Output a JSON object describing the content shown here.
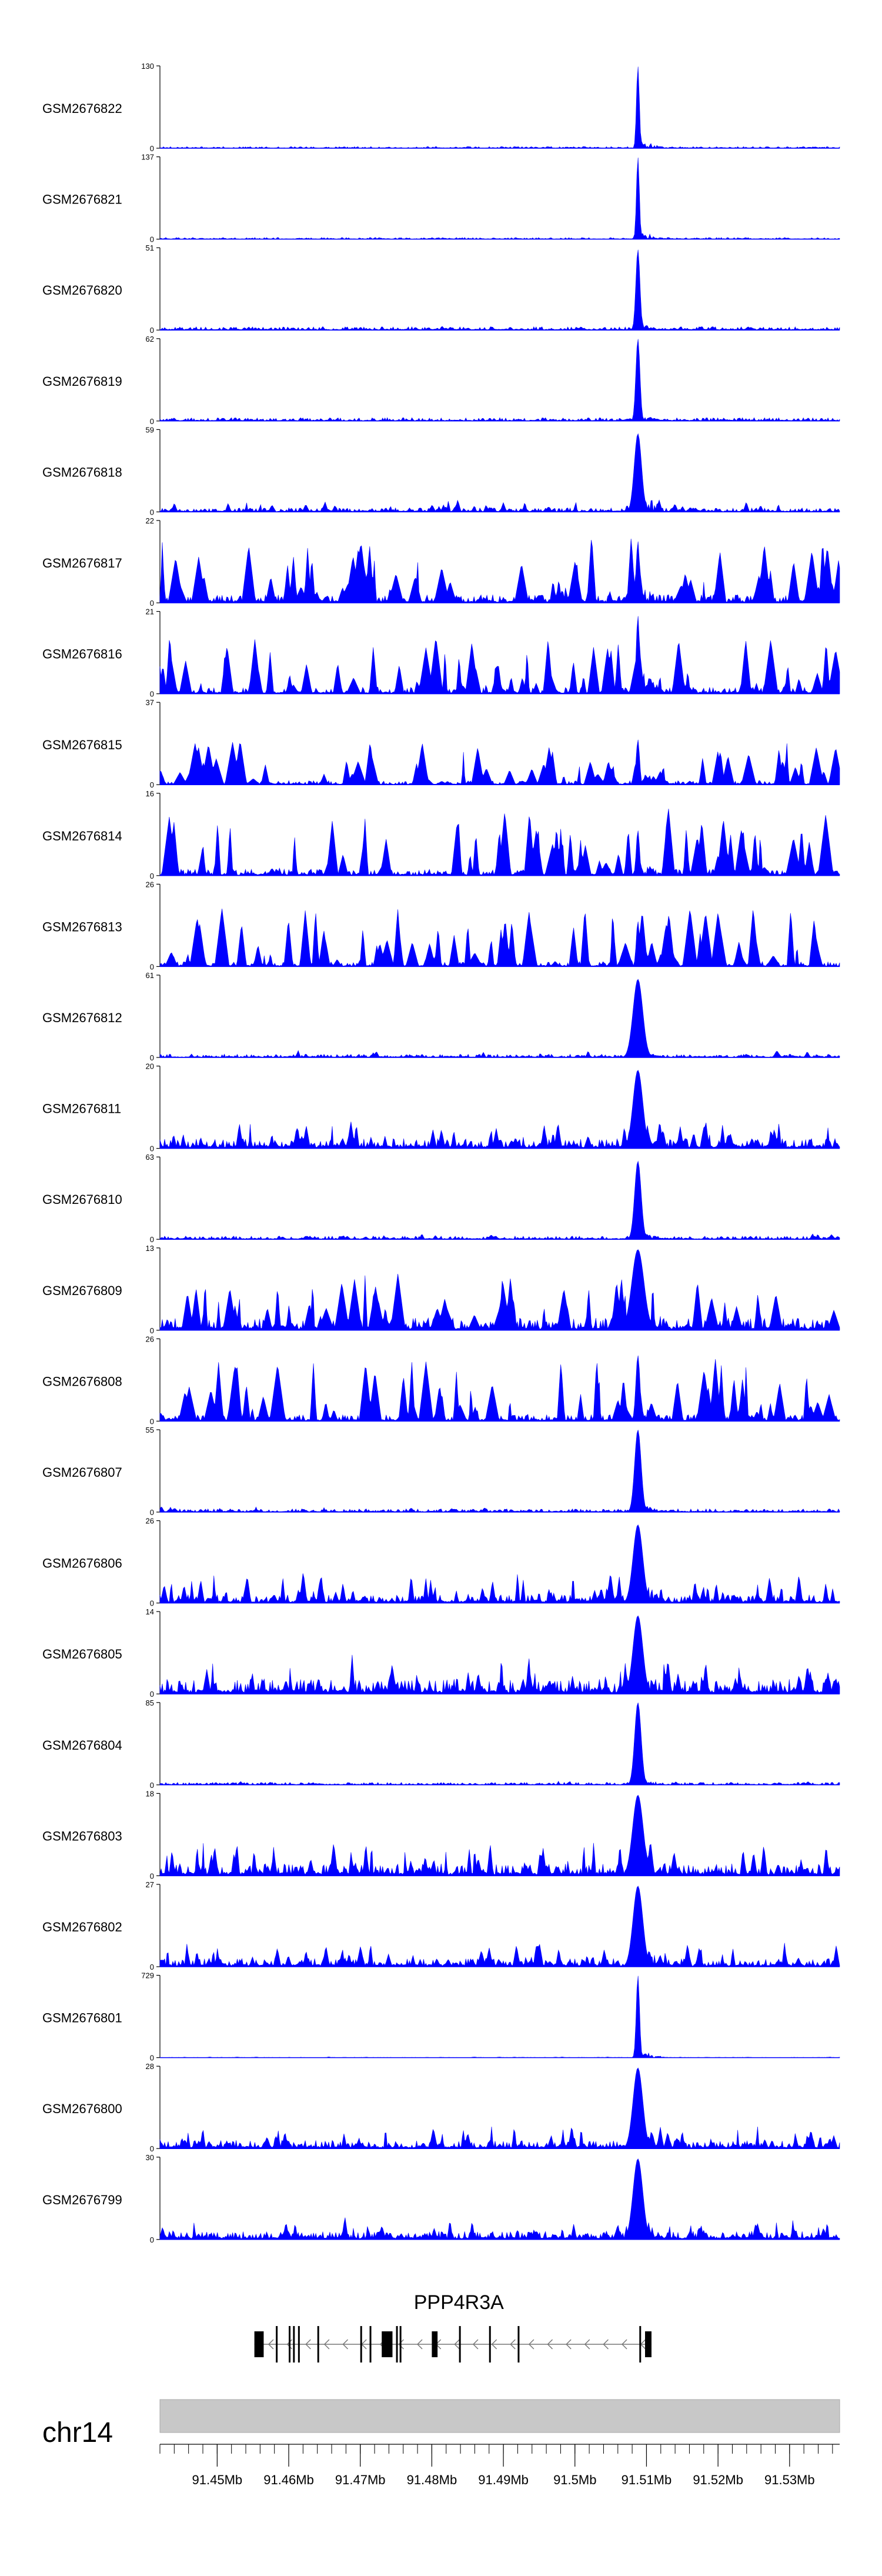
{
  "chart_data": {
    "type": "area",
    "genome": {
      "chromosome": "chr14",
      "xlim": [
        91.442,
        91.537
      ]
    },
    "ticks": {
      "major": [
        91.45,
        91.46,
        91.47,
        91.48,
        91.49,
        91.5,
        91.51,
        91.52,
        91.53
      ],
      "major_labels": [
        "91.45Mb",
        "91.46Mb",
        "91.47Mb",
        "91.48Mb",
        "91.49Mb",
        "91.5Mb",
        "91.51Mb",
        "91.52Mb",
        "91.53Mb"
      ],
      "minor_step": 0.002
    },
    "tracks": [
      {
        "name": "GSM2676822",
        "ymax": "130",
        "ymin": "0",
        "noise": 0.015,
        "bg": 0.02,
        "peak": 1.0,
        "peakWidth": 0.00035,
        "noise_type": "low"
      },
      {
        "name": "GSM2676821",
        "ymax": "137",
        "ymin": "0",
        "noise": 0.015,
        "bg": 0.02,
        "peak": 1.0,
        "peakWidth": 0.00035,
        "noise_type": "low"
      },
      {
        "name": "GSM2676820",
        "ymax": "51",
        "ymin": "0",
        "noise": 0.05,
        "bg": 0.04,
        "peak": 0.98,
        "peakWidth": 0.0005,
        "noise_type": "low"
      },
      {
        "name": "GSM2676819",
        "ymax": "62",
        "ymin": "0",
        "noise": 0.04,
        "bg": 0.04,
        "peak": 1.0,
        "peakWidth": 0.0005,
        "noise_type": "low"
      },
      {
        "name": "GSM2676818",
        "ymax": "59",
        "ymin": "0",
        "noise": 0.15,
        "bg": 0.05,
        "peak": 0.95,
        "peakWidth": 0.0009,
        "noise_type": "mid"
      },
      {
        "name": "GSM2676817",
        "ymax": "22",
        "ymin": "0",
        "noise": 0.85,
        "bg": 0.1,
        "peak": 0.75,
        "peakWidth": 0.0004,
        "noise_type": "high"
      },
      {
        "name": "GSM2676816",
        "ymax": "21",
        "ymin": "0",
        "noise": 0.75,
        "bg": 0.08,
        "peak": 0.95,
        "peakWidth": 0.0004,
        "noise_type": "high"
      },
      {
        "name": "GSM2676815",
        "ymax": "37",
        "ymin": "0",
        "noise": 0.55,
        "bg": 0.05,
        "peak": 0.55,
        "peakWidth": 0.0004,
        "noise_type": "high"
      },
      {
        "name": "GSM2676814",
        "ymax": "16",
        "ymin": "0",
        "noise": 0.85,
        "bg": 0.08,
        "peak": 0.55,
        "peakWidth": 0.0004,
        "noise_type": "high"
      },
      {
        "name": "GSM2676813",
        "ymax": "26",
        "ymin": "0",
        "noise": 0.75,
        "bg": 0.06,
        "peak": 0.55,
        "peakWidth": 0.0004,
        "noise_type": "high"
      },
      {
        "name": "GSM2676812",
        "ymax": "61",
        "ymin": "0",
        "noise": 0.1,
        "bg": 0.04,
        "peak": 0.95,
        "peakWidth": 0.0012,
        "noise_type": "low"
      },
      {
        "name": "GSM2676811",
        "ymax": "20",
        "ymin": "0",
        "noise": 0.35,
        "bg": 0.12,
        "peak": 0.95,
        "peakWidth": 0.0012,
        "noise_type": "mid"
      },
      {
        "name": "GSM2676810",
        "ymax": "63",
        "ymin": "0",
        "noise": 0.07,
        "bg": 0.04,
        "peak": 0.95,
        "peakWidth": 0.0008,
        "noise_type": "low"
      },
      {
        "name": "GSM2676809",
        "ymax": "13",
        "ymin": "0",
        "noise": 0.7,
        "bg": 0.15,
        "peak": 0.98,
        "peakWidth": 0.0015,
        "noise_type": "high"
      },
      {
        "name": "GSM2676808",
        "ymax": "26",
        "ymin": "0",
        "noise": 0.8,
        "bg": 0.08,
        "peak": 0.8,
        "peakWidth": 0.0005,
        "noise_type": "high"
      },
      {
        "name": "GSM2676807",
        "ymax": "55",
        "ymin": "0",
        "noise": 0.08,
        "bg": 0.04,
        "peak": 1.0,
        "peakWidth": 0.0008,
        "noise_type": "low"
      },
      {
        "name": "GSM2676806",
        "ymax": "26",
        "ymin": "0",
        "noise": 0.4,
        "bg": 0.1,
        "peak": 0.95,
        "peakWidth": 0.0012,
        "noise_type": "mid"
      },
      {
        "name": "GSM2676805",
        "ymax": "14",
        "ymin": "0",
        "noise": 0.5,
        "bg": 0.18,
        "peak": 0.95,
        "peakWidth": 0.0012,
        "noise_type": "mid"
      },
      {
        "name": "GSM2676804",
        "ymax": "85",
        "ymin": "0",
        "noise": 0.05,
        "bg": 0.03,
        "peak": 1.0,
        "peakWidth": 0.0008,
        "noise_type": "low"
      },
      {
        "name": "GSM2676803",
        "ymax": "18",
        "ymin": "0",
        "noise": 0.45,
        "bg": 0.15,
        "peak": 0.98,
        "peakWidth": 0.0013,
        "noise_type": "mid"
      },
      {
        "name": "GSM2676802",
        "ymax": "27",
        "ymin": "0",
        "noise": 0.3,
        "bg": 0.1,
        "peak": 0.98,
        "peakWidth": 0.0012,
        "noise_type": "mid"
      },
      {
        "name": "GSM2676801",
        "ymax": "729",
        "ymin": "0",
        "noise": 0.01,
        "bg": 0.005,
        "peak": 1.0,
        "peakWidth": 0.0004,
        "noise_type": "low"
      },
      {
        "name": "GSM2676800",
        "ymax": "28",
        "ymin": "0",
        "noise": 0.3,
        "bg": 0.1,
        "peak": 0.98,
        "peakWidth": 0.0012,
        "noise_type": "mid"
      },
      {
        "name": "GSM2676799",
        "ymax": "30",
        "ymin": "0",
        "noise": 0.3,
        "bg": 0.1,
        "peak": 0.98,
        "peakWidth": 0.0012,
        "noise_type": "mid"
      }
    ],
    "peak_position": 91.5088,
    "gene": {
      "name": "PPP4R3A",
      "start": 91.4552,
      "end": 91.5107,
      "strand": "-",
      "exons": [
        {
          "start": 91.4552,
          "end": 91.4565,
          "thick": true
        },
        {
          "start": 91.4582,
          "end": 91.4584,
          "thick": false
        },
        {
          "start": 91.46,
          "end": 91.4602,
          "thick": false
        },
        {
          "start": 91.4606,
          "end": 91.4608,
          "thick": false
        },
        {
          "start": 91.4613,
          "end": 91.4615,
          "thick": false
        },
        {
          "start": 91.464,
          "end": 91.4642,
          "thick": false
        },
        {
          "start": 91.47,
          "end": 91.4702,
          "thick": false
        },
        {
          "start": 91.4713,
          "end": 91.4715,
          "thick": false
        },
        {
          "start": 91.473,
          "end": 91.4745,
          "thick": true
        },
        {
          "start": 91.475,
          "end": 91.4752,
          "thick": false
        },
        {
          "start": 91.4755,
          "end": 91.4757,
          "thick": false
        },
        {
          "start": 91.48,
          "end": 91.4808,
          "thick": true
        },
        {
          "start": 91.4838,
          "end": 91.484,
          "thick": false
        },
        {
          "start": 91.488,
          "end": 91.4882,
          "thick": false
        },
        {
          "start": 91.492,
          "end": 91.4922,
          "thick": false
        },
        {
          "start": 91.509,
          "end": 91.5092,
          "thick": false
        },
        {
          "start": 91.5098,
          "end": 91.5107,
          "thick": true
        }
      ]
    }
  },
  "colors": {
    "signal": "#0000ff",
    "ideogram": "#c8c8c8",
    "axis": "#000000",
    "gene": "#000000",
    "intron_arrows": "#777777"
  }
}
